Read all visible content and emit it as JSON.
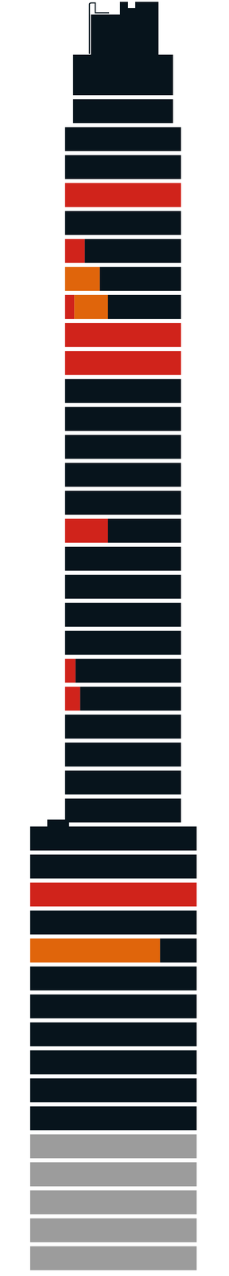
{
  "chart_data": {
    "type": "bar",
    "orientation": "horizontal",
    "stacked": true,
    "tick_labels": false,
    "categories": [
      null,
      null,
      null,
      null,
      null,
      null,
      null,
      null,
      null,
      null,
      null,
      null,
      null,
      null,
      null,
      null,
      null,
      null,
      null,
      null,
      null,
      null,
      null,
      null,
      null,
      null,
      null,
      null,
      null,
      null,
      null,
      null,
      null,
      null,
      null,
      null,
      null,
      null,
      null,
      null,
      null,
      null,
      null
    ],
    "xlim": [
      0,
      100
    ],
    "series": [
      {
        "color": "#d0231b",
        "values": [
          0,
          0,
          0,
          0,
          100,
          0,
          17,
          0,
          8,
          100,
          100,
          0,
          0,
          0,
          0,
          0,
          37,
          0,
          0,
          0,
          0,
          9,
          13,
          0,
          0,
          0,
          0,
          0,
          0,
          100,
          0,
          0,
          0,
          0,
          0,
          0,
          0,
          0,
          0,
          0,
          0,
          0,
          0
        ]
      },
      {
        "color": "#e0650b",
        "values": [
          0,
          0,
          0,
          0,
          0,
          0,
          0,
          30,
          29,
          0,
          0,
          0,
          0,
          0,
          0,
          0,
          0,
          0,
          0,
          0,
          0,
          0,
          0,
          0,
          0,
          0,
          0,
          0,
          0,
          0,
          0,
          78,
          0,
          0,
          0,
          0,
          0,
          0,
          0,
          0,
          0,
          0,
          0
        ]
      },
      {
        "colors": [
          "#07141c",
          "#07141c",
          "#07141c",
          "#07141c",
          "#07141c",
          "#07141c",
          "#07141c",
          "#07141c",
          "#07141c",
          "#07141c",
          "#07141c",
          "#07141c",
          "#07141c",
          "#07141c",
          "#07141c",
          "#07141c",
          "#07141c",
          "#07141c",
          "#07141c",
          "#07141c",
          "#07141c",
          "#07141c",
          "#07141c",
          "#07141c",
          "#07141c",
          "#07141c",
          "#07141c",
          "#07141c",
          "#07141c",
          "#07141c",
          "#07141c",
          "#07141c",
          "#07141c",
          "#07141c",
          "#07141c",
          "#07141c",
          "#07141c",
          "#07141c",
          "#9c9c9c",
          "#9c9c9c",
          "#9c9c9c",
          "#9c9c9c",
          "#9c9c9c"
        ],
        "values": [
          100,
          100,
          100,
          100,
          0,
          100,
          83,
          70,
          63,
          0,
          0,
          100,
          100,
          100,
          100,
          100,
          63,
          100,
          100,
          100,
          100,
          91,
          87,
          100,
          100,
          100,
          100,
          100,
          100,
          0,
          100,
          22,
          100,
          100,
          100,
          100,
          100,
          100,
          100,
          100,
          100,
          100,
          100
        ]
      }
    ]
  }
}
